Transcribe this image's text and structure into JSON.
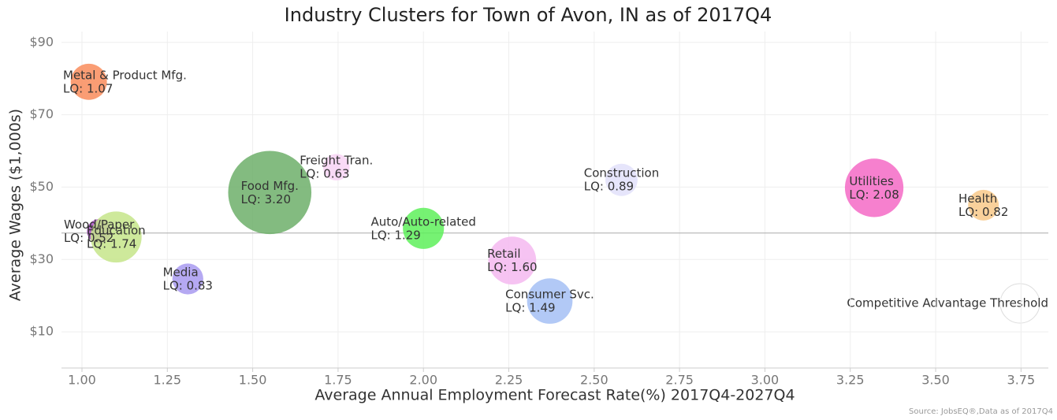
{
  "chart_data": {
    "type": "bubble",
    "title": "Industry Clusters for Town of Avon, IN as of 2017Q4",
    "x_label": "Average Annual Employment Forecast Rate(%) 2017Q4-2027Q4",
    "y_label": "Average Wages ($1,000s)",
    "source": "Source: JobsEQ®,Data as of 2017Q4",
    "xlim": [
      0.94,
      3.83
    ],
    "ylim": [
      0,
      93
    ],
    "xticks": [
      {
        "value": 1,
        "label": "1.00"
      },
      {
        "value": 1.25,
        "label": "1.25"
      },
      {
        "value": 1.5,
        "label": "1.50"
      },
      {
        "value": 1.75,
        "label": "1.75"
      },
      {
        "value": 2,
        "label": "2.00"
      },
      {
        "value": 2.25,
        "label": "2.25"
      },
      {
        "value": 2.5,
        "label": "2.50"
      },
      {
        "value": 2.75,
        "label": "2.75"
      },
      {
        "value": 3,
        "label": "3.00"
      },
      {
        "value": 3.25,
        "label": "3.25"
      },
      {
        "value": 3.5,
        "label": "3.50"
      },
      {
        "value": 3.75,
        "label": "3.75"
      }
    ],
    "yticks": [
      {
        "value": 10,
        "label": "$10"
      },
      {
        "value": 30,
        "label": "$30"
      },
      {
        "value": 50,
        "label": "$50"
      },
      {
        "value": 70,
        "label": "$70"
      },
      {
        "value": 90,
        "label": "$90"
      }
    ],
    "grid": true,
    "threshold": {
      "label": "Competitive Advantage Threshold",
      "value": 37.3
    },
    "series": [
      {
        "name": "Metal & Product Mfg.",
        "color": "#f98c5c",
        "x": [
          1.02
        ],
        "values": [
          79.1
        ],
        "sizes": [
          1.07
        ],
        "size_labels": [
          "LQ: 1.07"
        ]
      },
      {
        "name": "Wood/Paper",
        "color": "#a94cc4",
        "x": [
          1.05
        ],
        "values": [
          37.8
        ],
        "sizes": [
          0.52
        ],
        "size_labels": [
          "LQ: 0.52"
        ]
      },
      {
        "name": "Education",
        "color": "#c6e58a",
        "x": [
          1.1
        ],
        "values": [
          36.2
        ],
        "sizes": [
          1.74
        ],
        "size_labels": [
          "LQ: 1.74"
        ]
      },
      {
        "name": "Media",
        "color": "#a89af0",
        "x": [
          1.31
        ],
        "values": [
          24.6
        ],
        "sizes": [
          0.83
        ],
        "size_labels": [
          "LQ: 0.83"
        ]
      },
      {
        "name": "Food Mfg.",
        "color": "#6daf6a",
        "x": [
          1.55
        ],
        "values": [
          48.5
        ],
        "sizes": [
          3.2
        ],
        "size_labels": [
          "LQ: 3.20"
        ]
      },
      {
        "name": "Freight Tran.",
        "color": "#f8d4f4",
        "x": [
          1.745
        ],
        "values": [
          55.5
        ],
        "sizes": [
          0.63
        ],
        "size_labels": [
          "LQ: 0.63"
        ]
      },
      {
        "name": "Auto/Auto-related",
        "color": "#5ef05a",
        "x": [
          2.0
        ],
        "values": [
          38.6
        ],
        "sizes": [
          1.29
        ],
        "size_labels": [
          "LQ: 1.29"
        ]
      },
      {
        "name": "Retail",
        "color": "#f5b8f0",
        "x": [
          2.26
        ],
        "values": [
          29.7
        ],
        "sizes": [
          1.6
        ],
        "size_labels": [
          "LQ: 1.60"
        ]
      },
      {
        "name": "Consumer Svc.",
        "color": "#a4bff5",
        "x": [
          2.37
        ],
        "values": [
          18.5
        ],
        "sizes": [
          1.49
        ],
        "size_labels": [
          "LQ: 1.49"
        ]
      },
      {
        "name": "Construction",
        "color": "#e2e0fa",
        "x": [
          2.58
        ],
        "values": [
          52.0
        ],
        "sizes": [
          0.89
        ],
        "size_labels": [
          "LQ: 0.89"
        ]
      },
      {
        "name": "Utilities",
        "color": "#f56ac6",
        "x": [
          3.32
        ],
        "values": [
          49.8
        ],
        "sizes": [
          2.08
        ],
        "size_labels": [
          "LQ: 2.08"
        ]
      },
      {
        "name": "Health",
        "color": "#f8c98a",
        "x": [
          3.64
        ],
        "values": [
          45.0
        ],
        "sizes": [
          0.82
        ],
        "size_labels": [
          "LQ: 0.82"
        ]
      }
    ]
  }
}
